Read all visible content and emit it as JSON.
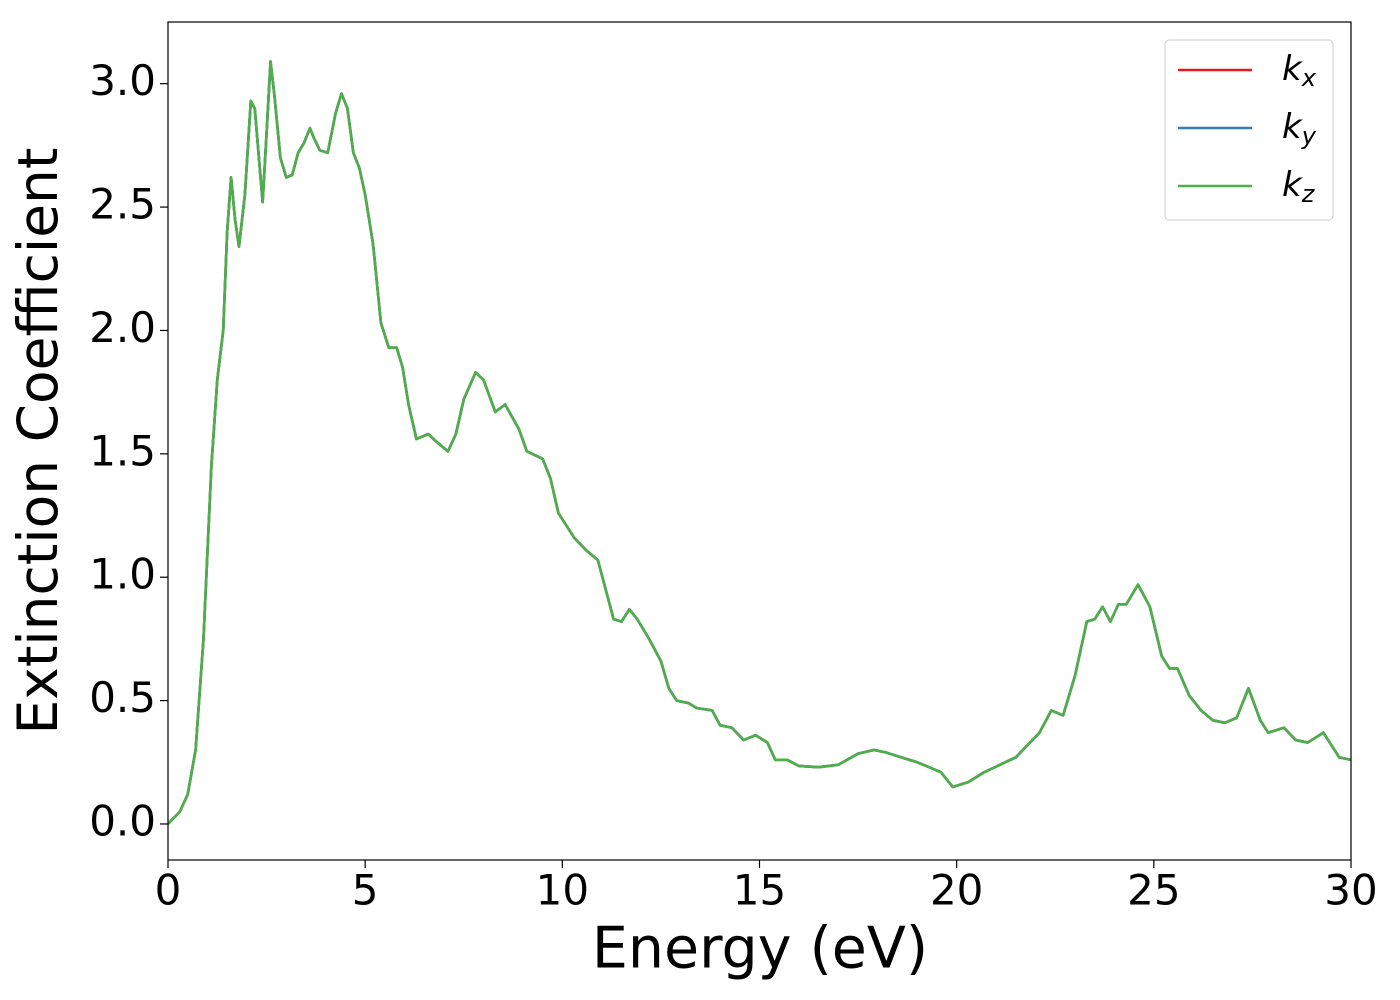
{
  "chart_data": {
    "type": "line",
    "xlabel": "Energy (eV)",
    "ylabel": "Extinction Coefficient",
    "x": [
      0,
      0.3,
      0.5,
      0.7,
      0.9,
      1.1,
      1.25,
      1.4,
      1.5,
      1.6,
      1.7,
      1.8,
      1.95,
      2.1,
      2.2,
      2.4,
      2.5,
      2.6,
      2.7,
      2.85,
      3.0,
      3.15,
      3.3,
      3.45,
      3.6,
      3.7,
      3.85,
      4.05,
      4.25,
      4.4,
      4.55,
      4.7,
      4.85,
      5.0,
      5.2,
      5.4,
      5.6,
      5.8,
      5.95,
      6.1,
      6.3,
      6.6,
      6.8,
      7.1,
      7.3,
      7.5,
      7.8,
      8.0,
      8.3,
      8.55,
      8.9,
      9.1,
      9.5,
      9.7,
      9.9,
      10.3,
      10.6,
      10.9,
      11.1,
      11.3,
      11.5,
      11.7,
      11.9,
      12.2,
      12.5,
      12.7,
      12.9,
      13.2,
      13.4,
      13.8,
      14.0,
      14.3,
      14.6,
      14.9,
      15.2,
      15.4,
      15.7,
      16.0,
      16.5,
      17.0,
      17.5,
      17.9,
      18.2,
      18.6,
      19.0,
      19.3,
      19.6,
      19.9,
      20.3,
      20.7,
      21.1,
      21.5,
      21.8,
      22.1,
      22.4,
      22.7,
      23.0,
      23.3,
      23.5,
      23.7,
      23.9,
      24.1,
      24.3,
      24.6,
      24.9,
      25.2,
      25.4,
      25.6,
      25.9,
      26.2,
      26.5,
      26.8,
      27.1,
      27.4,
      27.7,
      27.9,
      28.3,
      28.6,
      28.9,
      29.3,
      29.7,
      30.0
    ],
    "series": [
      {
        "name": "kx",
        "color": "#e41a1c",
        "values": [
          0,
          0.05,
          0.12,
          0.3,
          0.75,
          1.45,
          1.8,
          2.0,
          2.4,
          2.62,
          2.45,
          2.34,
          2.55,
          2.93,
          2.9,
          2.52,
          2.8,
          3.09,
          2.95,
          2.7,
          2.62,
          2.63,
          2.72,
          2.76,
          2.82,
          2.78,
          2.73,
          2.72,
          2.88,
          2.96,
          2.9,
          2.72,
          2.66,
          2.55,
          2.35,
          2.03,
          1.93,
          1.93,
          1.85,
          1.7,
          1.56,
          1.58,
          1.55,
          1.51,
          1.58,
          1.72,
          1.83,
          1.8,
          1.67,
          1.7,
          1.6,
          1.51,
          1.48,
          1.4,
          1.26,
          1.16,
          1.11,
          1.07,
          0.95,
          0.83,
          0.82,
          0.87,
          0.83,
          0.75,
          0.66,
          0.55,
          0.5,
          0.49,
          0.47,
          0.46,
          0.4,
          0.39,
          0.34,
          0.36,
          0.33,
          0.26,
          0.26,
          0.235,
          0.23,
          0.24,
          0.285,
          0.3,
          0.29,
          0.27,
          0.25,
          0.23,
          0.21,
          0.15,
          0.17,
          0.21,
          0.24,
          0.27,
          0.32,
          0.37,
          0.46,
          0.44,
          0.6,
          0.82,
          0.83,
          0.88,
          0.82,
          0.89,
          0.89,
          0.97,
          0.88,
          0.68,
          0.63,
          0.63,
          0.52,
          0.46,
          0.42,
          0.41,
          0.43,
          0.55,
          0.42,
          0.37,
          0.39,
          0.34,
          0.33,
          0.37,
          0.27,
          0.26
        ]
      },
      {
        "name": "ky",
        "color": "#377eb8",
        "values": [
          0,
          0.05,
          0.12,
          0.3,
          0.75,
          1.45,
          1.8,
          2.0,
          2.4,
          2.62,
          2.45,
          2.34,
          2.55,
          2.93,
          2.9,
          2.52,
          2.8,
          3.09,
          2.95,
          2.7,
          2.62,
          2.63,
          2.72,
          2.76,
          2.82,
          2.78,
          2.73,
          2.72,
          2.88,
          2.96,
          2.9,
          2.72,
          2.66,
          2.55,
          2.35,
          2.03,
          1.93,
          1.93,
          1.85,
          1.7,
          1.56,
          1.58,
          1.55,
          1.51,
          1.58,
          1.72,
          1.83,
          1.8,
          1.67,
          1.7,
          1.6,
          1.51,
          1.48,
          1.4,
          1.26,
          1.16,
          1.11,
          1.07,
          0.95,
          0.83,
          0.82,
          0.87,
          0.83,
          0.75,
          0.66,
          0.55,
          0.5,
          0.49,
          0.47,
          0.46,
          0.4,
          0.39,
          0.34,
          0.36,
          0.33,
          0.26,
          0.26,
          0.235,
          0.23,
          0.24,
          0.285,
          0.3,
          0.29,
          0.27,
          0.25,
          0.23,
          0.21,
          0.15,
          0.17,
          0.21,
          0.24,
          0.27,
          0.32,
          0.37,
          0.46,
          0.44,
          0.6,
          0.82,
          0.83,
          0.88,
          0.82,
          0.89,
          0.89,
          0.97,
          0.88,
          0.68,
          0.63,
          0.63,
          0.52,
          0.46,
          0.42,
          0.41,
          0.43,
          0.55,
          0.42,
          0.37,
          0.39,
          0.34,
          0.33,
          0.37,
          0.27,
          0.26
        ]
      },
      {
        "name": "kz",
        "color": "#4daf4a",
        "values": [
          0,
          0.05,
          0.12,
          0.3,
          0.75,
          1.45,
          1.8,
          2.0,
          2.4,
          2.62,
          2.45,
          2.34,
          2.55,
          2.93,
          2.9,
          2.52,
          2.8,
          3.09,
          2.95,
          2.7,
          2.62,
          2.63,
          2.72,
          2.76,
          2.82,
          2.78,
          2.73,
          2.72,
          2.88,
          2.96,
          2.9,
          2.72,
          2.66,
          2.55,
          2.35,
          2.03,
          1.93,
          1.93,
          1.85,
          1.7,
          1.56,
          1.58,
          1.55,
          1.51,
          1.58,
          1.72,
          1.83,
          1.8,
          1.67,
          1.7,
          1.6,
          1.51,
          1.48,
          1.4,
          1.26,
          1.16,
          1.11,
          1.07,
          0.95,
          0.83,
          0.82,
          0.87,
          0.83,
          0.75,
          0.66,
          0.55,
          0.5,
          0.49,
          0.47,
          0.46,
          0.4,
          0.39,
          0.34,
          0.36,
          0.33,
          0.26,
          0.26,
          0.235,
          0.23,
          0.24,
          0.285,
          0.3,
          0.29,
          0.27,
          0.25,
          0.23,
          0.21,
          0.15,
          0.17,
          0.21,
          0.24,
          0.27,
          0.32,
          0.37,
          0.46,
          0.44,
          0.6,
          0.82,
          0.83,
          0.88,
          0.82,
          0.89,
          0.89,
          0.97,
          0.88,
          0.68,
          0.63,
          0.63,
          0.52,
          0.46,
          0.42,
          0.41,
          0.43,
          0.55,
          0.42,
          0.37,
          0.39,
          0.34,
          0.33,
          0.37,
          0.27,
          0.26
        ]
      }
    ],
    "xlim": [
      0,
      30
    ],
    "xticks": [
      0,
      5,
      10,
      15,
      20,
      25,
      30
    ],
    "ylim": [
      -0.146,
      3.25
    ],
    "yticks": [
      {
        "value": 0,
        "label": "0.0"
      },
      0.5,
      {
        "value": 1,
        "label": "1.0"
      },
      1.5,
      {
        "value": 2,
        "label": "2.0"
      },
      2.5,
      {
        "value": 3,
        "label": "3.0"
      }
    ],
    "legend": "upper-right",
    "grid": false
  }
}
